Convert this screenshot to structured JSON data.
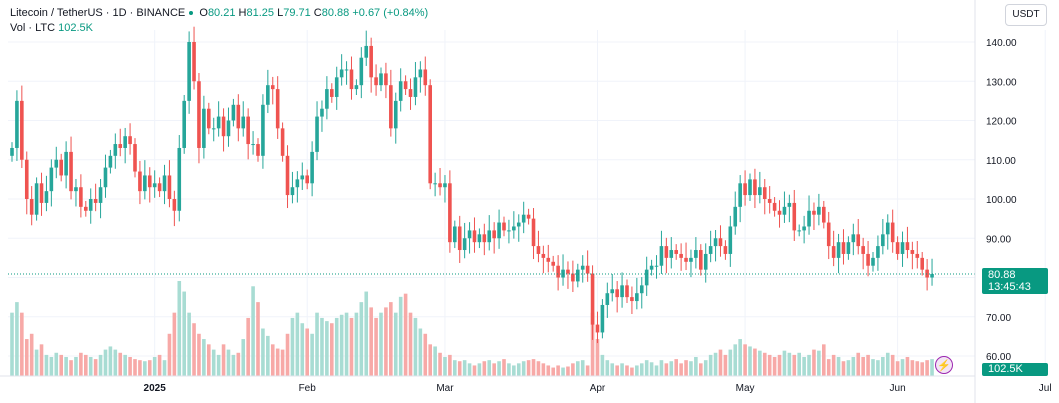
{
  "header": {
    "symbol": "Litecoin / TetherUS · 1D · BINANCE",
    "o_label": "O",
    "o_value": "80.21",
    "h_label": "H",
    "h_value": "81.25",
    "l_label": "L",
    "l_value": "79.71",
    "c_label": "C",
    "c_value": "80.88",
    "change": "+0.67 (+0.84%)",
    "vol_label": "Vol · LTC",
    "vol_value": "102.5K"
  },
  "currency_button": "USDT",
  "price_tag": {
    "price": "80.88",
    "countdown": "13:45:43"
  },
  "volume_tag": "102.5K",
  "colors": {
    "up": "#26a69a",
    "down": "#ef5350",
    "up_vol": "#a8dcd3",
    "down_vol": "#f7a9a7",
    "grid": "#f0f3fa",
    "last_price_line": "#089981"
  },
  "chart_data": {
    "type": "candlestick",
    "price_axis": {
      "min": 55,
      "max": 143,
      "ticks": [
        140.0,
        130.0,
        120.0,
        110.0,
        100.0,
        90.0,
        80.0,
        70.0,
        60.0
      ],
      "tick_labels": [
        "140.00",
        "130.00",
        "120.00",
        "110.00",
        "100.00",
        "90.00",
        "80.00",
        "70.00",
        "60.00"
      ]
    },
    "time_axis": {
      "labels": [
        "2025",
        "Feb",
        "Mar",
        "Apr",
        "May",
        "Jun",
        "Jul"
      ],
      "start_day_offset": -29
    },
    "last_close": 80.88,
    "closes": [
      113,
      125,
      110,
      100,
      96,
      104,
      99,
      102,
      108,
      110,
      106,
      112,
      102,
      103,
      98,
      97,
      100,
      99,
      103,
      108,
      111,
      114,
      113,
      116,
      114,
      107,
      102,
      106,
      103,
      104,
      102,
      106,
      100,
      97,
      113,
      125,
      140,
      130,
      113,
      123,
      118,
      118,
      121,
      116,
      120,
      124,
      118,
      121,
      114,
      114,
      111,
      124,
      129,
      128,
      118,
      111,
      101,
      103,
      105,
      106,
      104,
      112,
      121,
      123,
      128,
      126,
      131,
      133,
      133,
      128,
      129,
      136,
      139,
      131,
      129,
      132,
      129,
      118,
      125,
      130,
      128,
      126,
      131,
      133,
      129,
      104,
      104,
      103,
      104,
      89,
      93,
      87,
      90,
      92,
      89,
      91,
      89,
      92,
      90,
      94,
      92,
      92,
      93,
      94,
      96,
      95,
      88,
      86,
      85,
      84,
      83,
      80,
      82,
      81,
      79,
      82,
      83,
      81,
      68,
      66,
      73,
      76,
      77,
      75,
      78,
      75,
      74,
      76,
      78,
      82,
      83,
      83,
      88,
      85,
      87,
      86,
      85,
      84,
      85,
      87,
      82,
      86,
      88,
      90,
      88,
      86,
      93,
      98,
      104,
      101,
      105,
      101,
      103,
      100,
      99,
      97,
      96,
      98,
      99,
      92,
      92,
      93,
      97,
      96,
      98,
      94,
      88,
      85,
      89,
      86,
      89,
      91,
      88,
      86,
      83,
      85,
      88,
      91,
      94,
      89,
      86,
      89,
      87,
      86,
      85,
      82,
      80,
      80.88
    ],
    "volumes": [
      60,
      70,
      60,
      35,
      40,
      25,
      30,
      20,
      18,
      22,
      20,
      18,
      15,
      18,
      22,
      20,
      18,
      16,
      20,
      25,
      28,
      25,
      22,
      20,
      18,
      16,
      15,
      14,
      15,
      18,
      20,
      15,
      40,
      60,
      90,
      80,
      60,
      50,
      40,
      35,
      30,
      25,
      20,
      30,
      25,
      20,
      22,
      35,
      55,
      85,
      70,
      45,
      38,
      30,
      26,
      25,
      40,
      55,
      60,
      50,
      45,
      40,
      60,
      55,
      52,
      50,
      55,
      58,
      60,
      55,
      60,
      70,
      80,
      65,
      55,
      60,
      65,
      70,
      60,
      75,
      78,
      60,
      55,
      45,
      40,
      30,
      28,
      22,
      18,
      20,
      15,
      14,
      15,
      12,
      10,
      12,
      14,
      15,
      12,
      14,
      16,
      12,
      10,
      12,
      14,
      15,
      16,
      14,
      12,
      10,
      8,
      10,
      8,
      9,
      12,
      14,
      15,
      10,
      60,
      35,
      20,
      15,
      12,
      10,
      12,
      10,
      8,
      10,
      12,
      15,
      13,
      10,
      15,
      12,
      14,
      16,
      12,
      15,
      14,
      18,
      12,
      15,
      20,
      22,
      25,
      20,
      25,
      30,
      35,
      30,
      28,
      26,
      24,
      22,
      20,
      18,
      20,
      24,
      22,
      20,
      22,
      18,
      20,
      25,
      24,
      30,
      16,
      20,
      18,
      14,
      15,
      18,
      22,
      18,
      20,
      16,
      15,
      18,
      22,
      20,
      14,
      16,
      18,
      15,
      14,
      13,
      15,
      16
    ]
  }
}
